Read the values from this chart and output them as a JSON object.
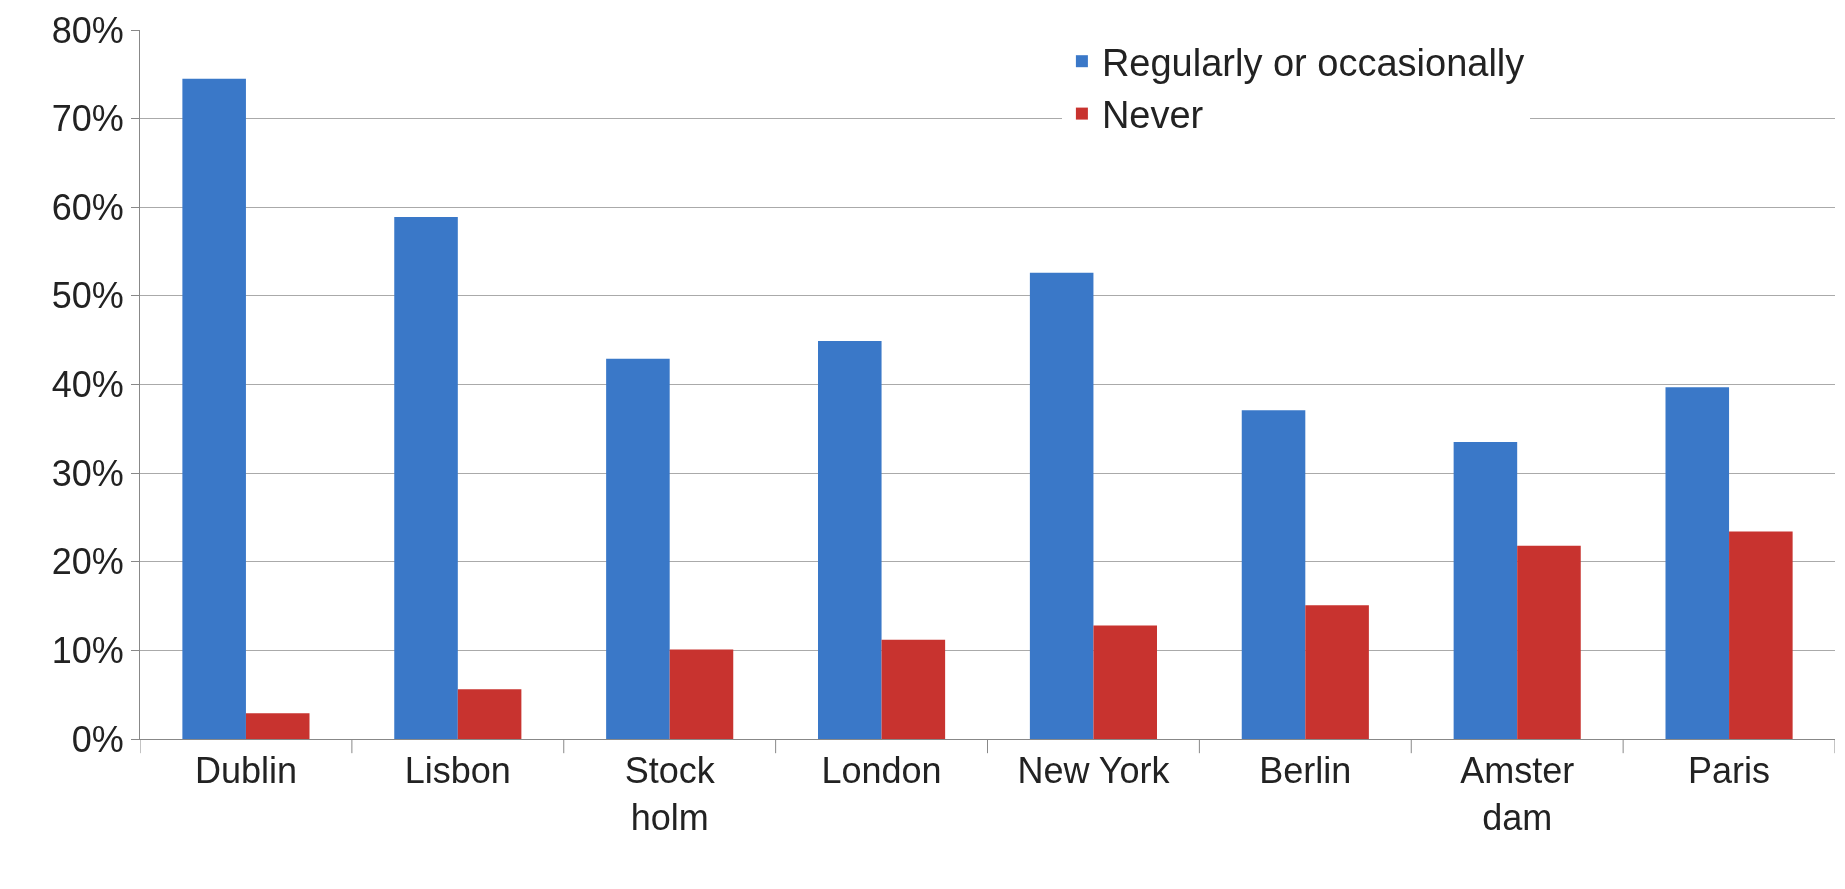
{
  "chart_data": {
    "type": "bar",
    "categories": [
      "Dublin",
      "Lisbon",
      "Stock\nholm",
      "London",
      "New York",
      "Berlin",
      "Amster\ndam",
      "Paris"
    ],
    "series": [
      {
        "name": "Regularly or occasionally",
        "color": "#3a78c8",
        "values": [
          74.5,
          58.9,
          42.9,
          44.9,
          52.6,
          37.1,
          33.5,
          39.7
        ]
      },
      {
        "name": "Never",
        "color": "#c8332f",
        "values": [
          2.9,
          5.6,
          10.1,
          11.2,
          12.8,
          15.1,
          21.8,
          23.4
        ]
      }
    ],
    "ylim": [
      0,
      80
    ],
    "yticks": [
      {
        "value": 0,
        "label": "0%"
      },
      {
        "value": 10,
        "label": "10%"
      },
      {
        "value": 20,
        "label": "20%"
      },
      {
        "value": 30,
        "label": "30%"
      },
      {
        "value": 40,
        "label": "40%"
      },
      {
        "value": 50,
        "label": "50%"
      },
      {
        "value": 60,
        "label": "60%"
      },
      {
        "value": 70,
        "label": "70%"
      },
      {
        "value": 80,
        "label": "80%"
      }
    ],
    "grid": "y",
    "legend": "top right"
  }
}
